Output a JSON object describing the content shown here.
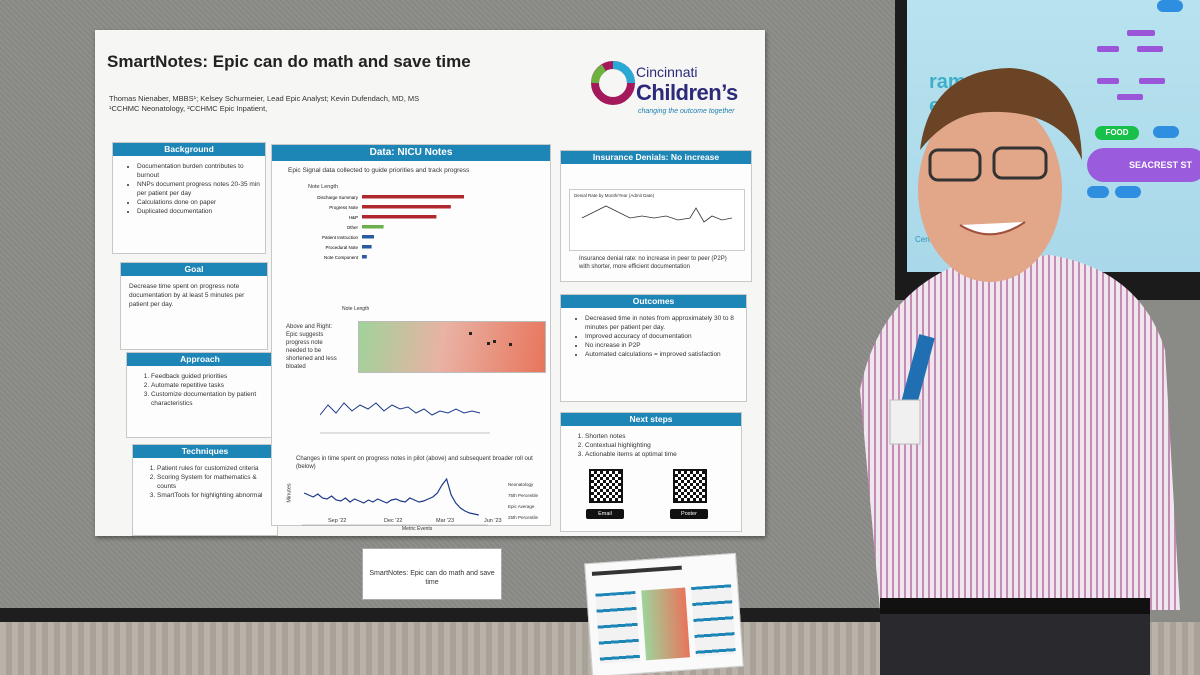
{
  "poster": {
    "title": "SmartNotes: Epic can do math and save time",
    "authors_line1": "Thomas Nienaber, MBBS¹; Kelsey Schurmeier, Lead Epic Analyst; Kevin Dufendach, MD, MS",
    "authors_line2": "¹CCHMC Neonatology, ²CCHMC Epic Inpatient,",
    "logo": {
      "word1": "Cincinnati",
      "word2": "Children’s",
      "tagline": "changing the outcome together"
    },
    "background": {
      "heading": "Background",
      "items": [
        "Documentation burden contributes to burnout",
        "NNPs document progress notes 20-35 min per patient per day",
        "Calculations done on paper",
        "Duplicated documentation"
      ]
    },
    "goal": {
      "heading": "Goal",
      "text": "Decrease time spent on progress note documentation by at least 5 minutes per patient per day."
    },
    "approach": {
      "heading": "Approach",
      "items": [
        "Feedback guided priorities",
        "Automate repetitive tasks",
        "Customize documentation by patient characteristics"
      ]
    },
    "techniques": {
      "heading": "Techniques",
      "items": [
        "Patient rules for customized criteria",
        "Scoring System for mathematics & counts",
        "SmartTools for highlighting abnormal"
      ]
    },
    "nicu": {
      "heading": "Data: NICU Notes",
      "subtitle": "Epic Signal data collected to guide priorities and track progress",
      "note_length_label": "Note Length",
      "note_length_bars": [
        {
          "label": "Discharge Summary",
          "value": 0.85,
          "color": "#b0282e"
        },
        {
          "label": "Progress Note",
          "value": 0.74,
          "color": "#b0282e"
        },
        {
          "label": "H&P",
          "value": 0.62,
          "color": "#b0282e"
        },
        {
          "label": "Other",
          "value": 0.18,
          "color": "#6ab04c"
        },
        {
          "label": "Patient Instruction",
          "value": 0.1,
          "color": "#2c5aa0"
        },
        {
          "label": "Procedural Note",
          "value": 0.08,
          "color": "#2c5aa0"
        },
        {
          "label": "Note Component",
          "value": 0.04,
          "color": "#2c5aa0"
        }
      ],
      "side_note": "Above and Right: Epic suggests progress note needed to be shortened and less bloated",
      "heatmap_label": "Note Length",
      "chart_caption": "Changes in time spent on progress notes in pilot (above) and subsequent broader roll out (below)",
      "xticks": [
        "Sep '22",
        "Dec '22",
        "Mar '23",
        "Jun '23"
      ],
      "yaxis": "Minutes",
      "legend": [
        "Neonatology",
        "75th Percentile",
        "Epic Average",
        "25th Percentile"
      ],
      "metric_events": "Metric Events"
    },
    "insurance": {
      "heading": "Insurance Denials: No increase",
      "chart_title": "Denial Rate by Month/Year (Admit Date)",
      "caption": "Insurance denial rate: no increase in peer to peer (P2P) with shorter, more efficient documentation"
    },
    "outcomes": {
      "heading": "Outcomes",
      "items": [
        "Decreased time in notes from approximately 30 to 8 minutes per patient per day.",
        "Improved accuracy of documentation",
        "No increase in P2P",
        "Automated calculations = improved satisfaction"
      ]
    },
    "next_steps": {
      "heading": "Next steps",
      "items": [
        "Shorten notes",
        "Contextual highlighting",
        "Actionable items at optimal time"
      ],
      "qr_email": "Email",
      "qr_poster": "Poster"
    }
  },
  "card_text": "SmartNotes: Epic can do math and save time",
  "screen": {
    "partial_text_1": "rams lo",
    "partial_text_2": "ent",
    "food_label": "FOOD",
    "seacrest_label": "SEACREST ST",
    "center_text": "Center"
  },
  "colors": {
    "accent": "#1d86b6",
    "shirt": "#e8dfe8",
    "stripe": "#c08ab0"
  }
}
